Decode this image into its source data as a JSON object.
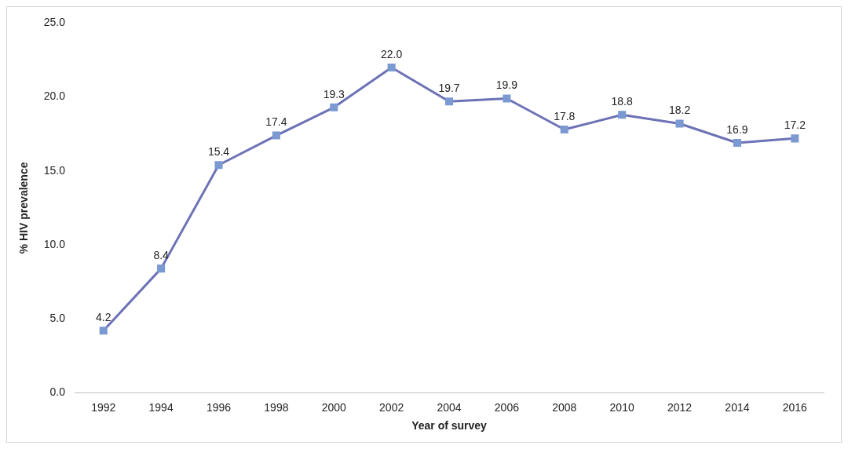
{
  "chart_data": {
    "type": "line",
    "xlabel": "Year of survey",
    "ylabel": "% HIV prevalence",
    "categories": [
      "1992",
      "1994",
      "1996",
      "1998",
      "2000",
      "2002",
      "2004",
      "2006",
      "2008",
      "2010",
      "2012",
      "2014",
      "2016"
    ],
    "series": [
      {
        "color": "#6d72b6",
        "values": [
          4.2,
          8.4,
          15.4,
          17.4,
          19.3,
          22.0,
          19.7,
          19.9,
          17.8,
          18.8,
          18.2,
          16.9,
          17.2
        ],
        "value_labels": [
          "4.2",
          "8.4",
          "15.4",
          "17.4",
          "19.3",
          "22.0",
          "19.7",
          "19.9",
          "17.8",
          "18.8",
          "18.2",
          "16.9",
          "17.2"
        ]
      }
    ],
    "ylim": [
      0,
      25
    ],
    "yticks": [
      {
        "value": 0,
        "label": "0.0"
      },
      {
        "value": 5,
        "label": "5.0"
      },
      {
        "value": 10,
        "label": "10.0"
      },
      {
        "value": 15,
        "label": "15.0"
      },
      {
        "value": 20,
        "label": "20.0"
      },
      {
        "value": 25,
        "label": "25.0"
      }
    ],
    "marker": "square",
    "grid": false,
    "legend": false
  }
}
